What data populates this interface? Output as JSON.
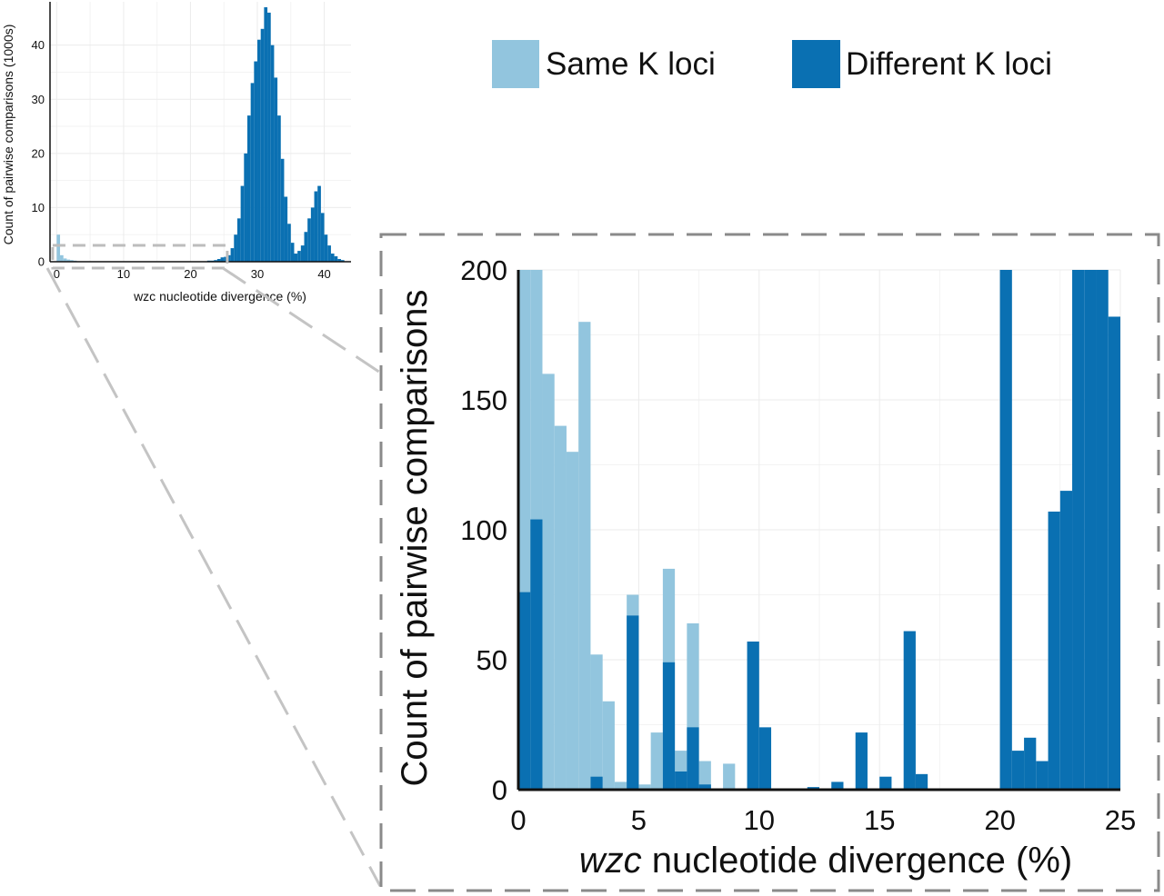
{
  "chart_data": [
    {
      "type": "bar",
      "role": "overview-histogram",
      "xlabel": "wzc nucleotide divergence (%)",
      "ylabel": "Count of pairwise comparisons (1000s)",
      "xlim": [
        -1,
        44
      ],
      "ylim": [
        0,
        48
      ],
      "xticks": [
        0,
        10,
        20,
        30,
        40
      ],
      "yticks": [
        0,
        10,
        20,
        30,
        40
      ],
      "bin_width": 0.5,
      "series": [
        {
          "name": "Same K loci",
          "color": "#92c5de",
          "x": [
            0,
            0.5,
            1,
            1.5,
            2,
            2.5
          ],
          "values": [
            5,
            1.2,
            0.6,
            0.4,
            0.3,
            0.2
          ]
        },
        {
          "name": "Different K loci",
          "color": "#0a70b2",
          "x": [
            22.5,
            23,
            23.5,
            24,
            24.5,
            25,
            25.5,
            26,
            26.5,
            27,
            27.5,
            28,
            28.5,
            29,
            29.5,
            30,
            30.5,
            31,
            31.5,
            32,
            32.5,
            33,
            33.5,
            34,
            34.5,
            35,
            35.5,
            36,
            36.5,
            37,
            37.5,
            38,
            38.5,
            39,
            39.5,
            40,
            40.5,
            41,
            41.5,
            42,
            42.5
          ],
          "values": [
            0.2,
            0.2,
            0.3,
            0.5,
            0.8,
            0.9,
            1.2,
            2.5,
            5,
            8,
            14,
            20,
            27,
            33,
            37,
            41,
            43,
            47,
            46,
            40,
            34,
            27,
            19,
            12,
            7,
            3.5,
            1.5,
            2,
            3,
            5.5,
            8,
            10,
            13,
            14,
            9,
            5,
            3,
            1.5,
            1,
            0.5,
            0.3
          ]
        }
      ]
    },
    {
      "type": "bar",
      "role": "zoomed-histogram",
      "xlabel_prefix": "wzc",
      "xlabel_rest": " nucleotide divergence (%)",
      "ylabel": "Count of pairwise comparisons",
      "xlim": [
        0,
        25
      ],
      "ylim": [
        0,
        200
      ],
      "xticks": [
        0,
        5,
        10,
        15,
        20,
        25
      ],
      "yticks": [
        0,
        50,
        100,
        150,
        200
      ],
      "bin_width": 0.5,
      "series": [
        {
          "name": "Same K loci",
          "color": "#92c5de",
          "x": [
            0,
            0.5,
            1,
            1.5,
            2,
            2.5,
            3,
            3.5,
            4,
            4.5,
            5,
            5.5,
            6,
            6.5,
            7,
            7.5,
            8.5
          ],
          "values": [
            200,
            200,
            160,
            140,
            130,
            180,
            52,
            34,
            3,
            75,
            2,
            22,
            85,
            15,
            64,
            11,
            10
          ]
        },
        {
          "name": "Different K loci",
          "color": "#0a70b2",
          "x": [
            0,
            0.5,
            3,
            4.5,
            6,
            6.5,
            7,
            7.5,
            9.5,
            10,
            12,
            13,
            14,
            15,
            16,
            16.5,
            20,
            20.5,
            21,
            21.5,
            22,
            22.5,
            23,
            23.5,
            24,
            24.5
          ],
          "values": [
            76,
            104,
            5,
            67,
            49,
            7,
            24,
            2,
            57,
            24,
            1,
            3,
            22,
            5,
            61,
            6,
            200,
            15,
            20,
            11,
            107,
            115,
            200,
            200,
            200,
            182
          ]
        }
      ]
    }
  ],
  "legend": {
    "same_label": "Same K loci",
    "different_label": "Different K loci",
    "same_color": "#92c5de",
    "different_color": "#0a70b2"
  }
}
